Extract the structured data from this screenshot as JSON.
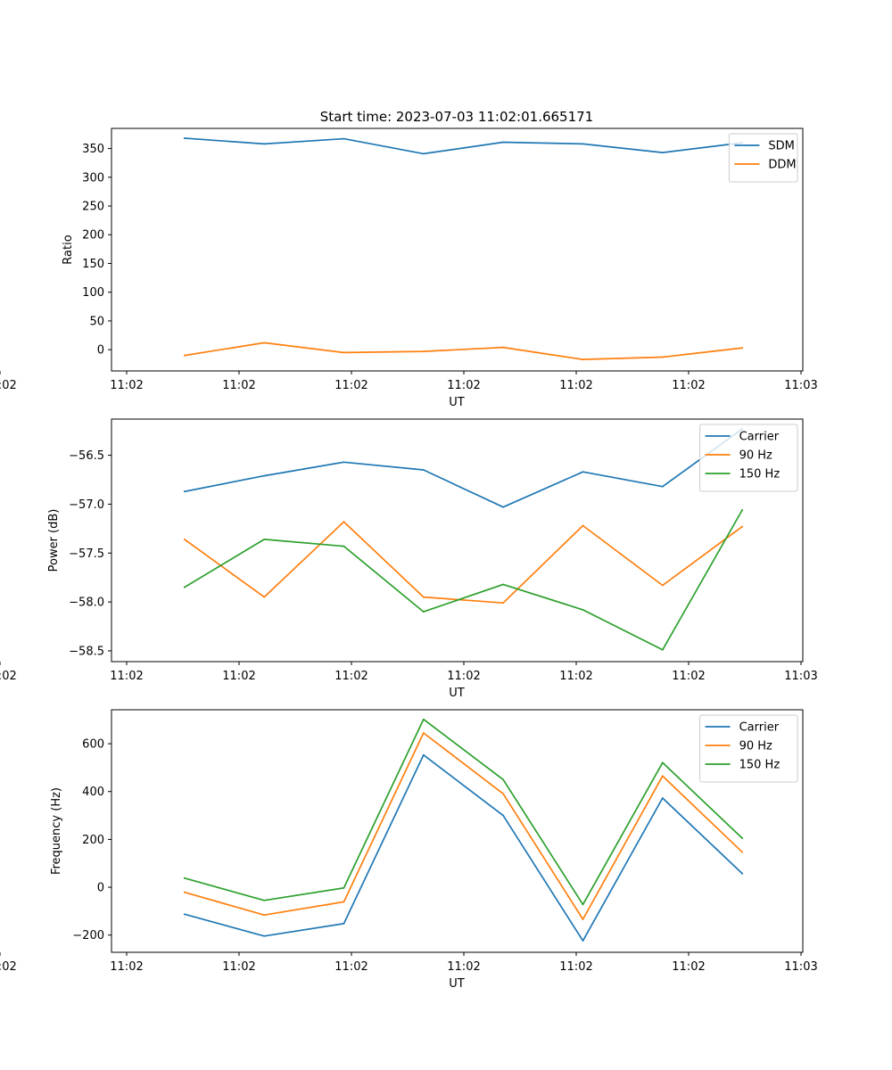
{
  "figure_title": "Start time: 2023-07-03 11:02:01.665171",
  "colors": {
    "blue": "#1f77b4",
    "orange": "#ff7f0e",
    "green": "#2ca02c"
  },
  "chart_data": [
    {
      "type": "line",
      "title": "Start time: 2023-07-03 11:02:01.665171",
      "xlabel": "UT",
      "ylabel": "Ratio",
      "x_tick_labels": [
        "11:02",
        "11:02",
        "11:02",
        "11:02",
        "11:02",
        "11:02",
        "11:02"
      ],
      "x_end_label": "11:03",
      "y_ticks": [
        0,
        50,
        100,
        150,
        200,
        250,
        300,
        350
      ],
      "ylim": [
        -37,
        385
      ],
      "x": [
        1,
        2,
        3,
        4,
        5,
        6,
        7,
        8
      ],
      "legend_position": "top-right",
      "series": [
        {
          "name": "SDM",
          "color": "#1f77b4",
          "values": [
            368,
            358,
            367,
            341,
            361,
            358,
            343,
            360
          ]
        },
        {
          "name": "DDM",
          "color": "#ff7f0e",
          "values": [
            -10,
            12,
            -5,
            -3,
            4,
            -17,
            -13,
            3
          ]
        }
      ]
    },
    {
      "type": "line",
      "title": "",
      "xlabel": "UT",
      "ylabel": "Power (dB)",
      "x_tick_labels": [
        "11:02",
        "11:02",
        "11:02",
        "11:02",
        "11:02",
        "11:02",
        "11:02"
      ],
      "x_end_label": "11:03",
      "y_ticks": [
        -58.5,
        -58.0,
        -57.5,
        -57.0,
        -56.5
      ],
      "y_tick_labels": [
        "−58.5",
        "−58.0",
        "−57.5",
        "−57.0",
        "−56.5"
      ],
      "ylim": [
        -58.61,
        -56.13
      ],
      "x": [
        1,
        2,
        3,
        4,
        5,
        6,
        7,
        8
      ],
      "legend_position": "top-right",
      "series": [
        {
          "name": "Carrier",
          "color": "#1f77b4",
          "values": [
            -56.87,
            -56.71,
            -56.57,
            -56.65,
            -57.03,
            -56.67,
            -56.82,
            -56.23
          ]
        },
        {
          "name": "90 Hz",
          "color": "#ff7f0e",
          "values": [
            -57.36,
            -57.95,
            -57.18,
            -57.95,
            -58.01,
            -57.22,
            -57.83,
            -57.23
          ]
        },
        {
          "name": "150 Hz",
          "color": "#2ca02c",
          "values": [
            -57.85,
            -57.36,
            -57.43,
            -58.1,
            -57.82,
            -58.08,
            -58.49,
            -57.06
          ]
        }
      ]
    },
    {
      "type": "line",
      "title": "",
      "xlabel": "UT",
      "ylabel": "Frequency (Hz)",
      "x_tick_labels": [
        "11:02",
        "11:02",
        "11:02",
        "11:02",
        "11:02",
        "11:02",
        "11:02"
      ],
      "x_end_label": "11:03",
      "y_ticks": [
        -200,
        0,
        200,
        400,
        600
      ],
      "y_tick_labels": [
        "−200",
        "0",
        "200",
        "400",
        "600"
      ],
      "ylim": [
        -272,
        742
      ],
      "x": [
        1,
        2,
        3,
        4,
        5,
        6,
        7,
        8
      ],
      "legend_position": "top-right",
      "series": [
        {
          "name": "Carrier",
          "color": "#1f77b4",
          "values": [
            -113,
            -204,
            -152,
            553,
            300,
            -224,
            373,
            57
          ]
        },
        {
          "name": "90 Hz",
          "color": "#ff7f0e",
          "values": [
            -21,
            -116,
            -61,
            645,
            391,
            -134,
            465,
            147
          ]
        },
        {
          "name": "150 Hz",
          "color": "#2ca02c",
          "values": [
            38,
            -55,
            -3,
            702,
            450,
            -72,
            521,
            205
          ]
        }
      ]
    }
  ]
}
